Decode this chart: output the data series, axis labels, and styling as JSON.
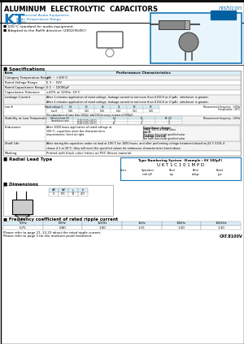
{
  "title": "ALUMINUM  ELECTROLYTIC  CAPACITORS",
  "brand": "nishicon",
  "series": "KT",
  "series_desc": "For General Audio Equipment,\nWide Temperature Range",
  "series_sublabel": "Series",
  "features": [
    "105°C standard for audio equipment",
    "Adapted to the RoHS directive (2002/95/EC)"
  ],
  "tan_delta_header": [
    "Rated voltage (V)",
    "6.3",
    "10",
    "16",
    "25",
    "50",
    "63"
  ],
  "tan_delta_row1": [
    "tan δ",
    "0.28",
    "0.20",
    "0.16",
    "0.14",
    "0.12",
    "0.10"
  ],
  "tan_delta_note": "(For capacitance of more than 1000μF, add 0.02 for every increase of 1000μF)",
  "impedance_header": [
    "Rated voltage (V)",
    "",
    "6.3",
    "10",
    "16 ~ 50",
    ""
  ],
  "impedance_rows": [
    [
      "Impedance ratio",
      "Z (-25°C) / Z (+20°C)",
      "3",
      "3",
      "4",
      ""
    ],
    [
      "",
      "Z (-55°C) / Z (+20°C)",
      "10",
      "8",
      "4",
      "3"
    ]
  ],
  "endurance_chars": [
    "Capacitance change:  Within ±20% of initial value",
    "tan δ:  Not more than initial specified value",
    "Leakage current:  Not more than initial specified value"
  ],
  "type_example_title": "Type Numbering System  (Example : 6V 100μF)",
  "type_code": "U K T 1 C 1 0 1 M P D",
  "freq_header": [
    "50Hz",
    "60Hz",
    "120Hz",
    "1kHz",
    "10kHz",
    "100kHz"
  ],
  "freq_vals": [
    "0.75",
    "0.80",
    "1.00",
    "1.15",
    "1.30",
    "1.30"
  ],
  "cat_number": "CAT.8100V",
  "bg_color": "#ffffff",
  "header_bg": "#daeef7",
  "blue_color": "#1777b8",
  "new_bg": "#0060a0",
  "table_border": "#999999",
  "alt_row": "#f2f2f2"
}
